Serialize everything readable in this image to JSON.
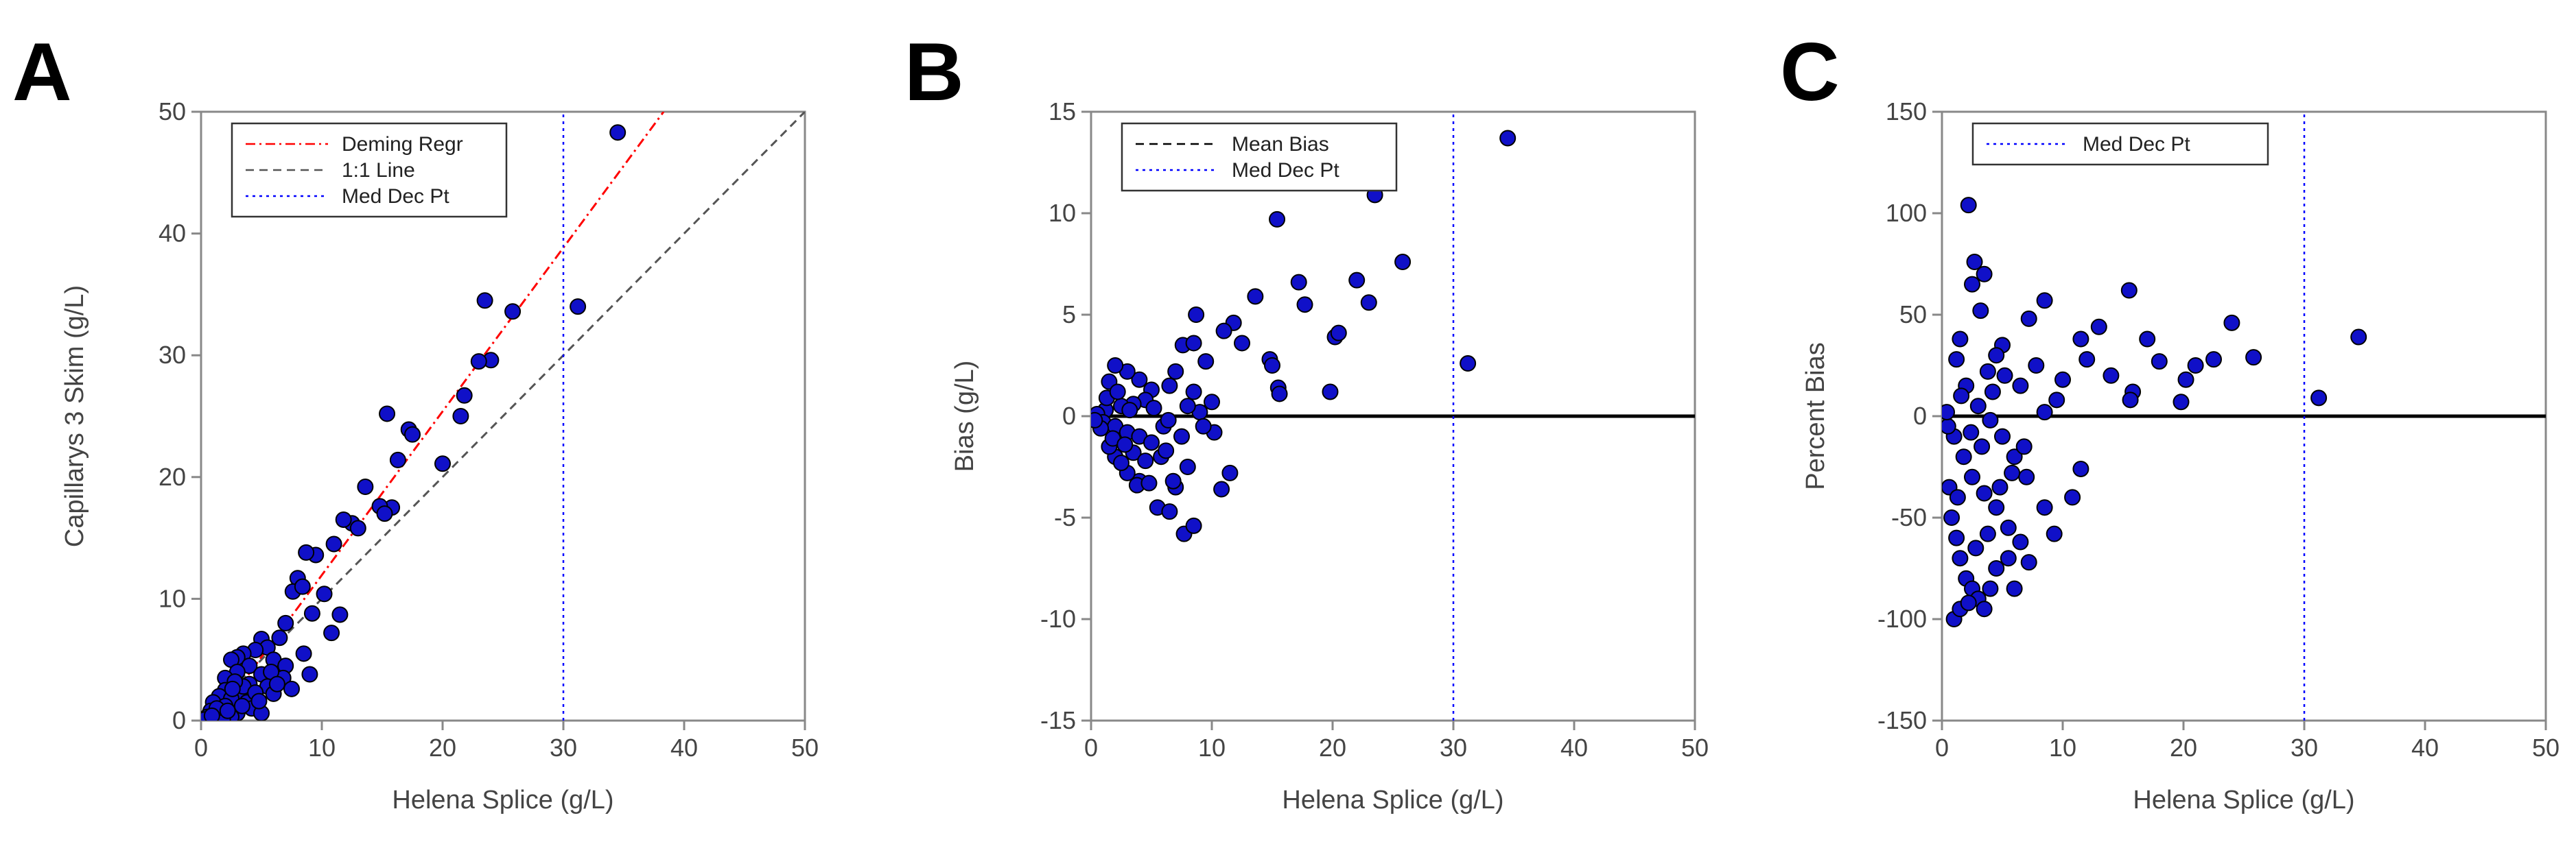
{
  "chart_data": [
    {
      "panel": "A",
      "type": "scatter",
      "xlabel": "Helena Splice (g/L)",
      "ylabel": "Capillarys 3 Skim (g/L)",
      "xlim": [
        0,
        50
      ],
      "ylim": [
        0,
        50
      ],
      "xticks": [
        0,
        10,
        20,
        30,
        40,
        50
      ],
      "yticks": [
        0,
        10,
        20,
        30,
        40,
        50
      ],
      "legend": {
        "position": "top-left",
        "entries": [
          {
            "label": "Deming Regr",
            "color": "#ff0000",
            "dash": "dashdot"
          },
          {
            "label": "1:1 Line",
            "color": "#555555",
            "dash": "dash"
          },
          {
            "label": "Med Dec Pt",
            "color": "#0000ff",
            "dash": "dot"
          }
        ]
      },
      "lines": [
        {
          "name": "Deming Regr",
          "color": "#ff0000",
          "x": [
            0,
            38.3
          ],
          "y": [
            -1.5,
            50
          ]
        },
        {
          "name": "1:1 Line",
          "color": "#555555",
          "x": [
            0,
            50
          ],
          "y": [
            0,
            50
          ]
        },
        {
          "name": "Med Dec Pt",
          "color": "#0000ff",
          "x": [
            30,
            30
          ],
          "y": [
            0,
            50
          ]
        }
      ],
      "marker_color": "#1010c8",
      "points": [
        [
          34.5,
          48.3
        ],
        [
          31.2,
          34
        ],
        [
          23.5,
          34.5
        ],
        [
          25.8,
          33.6
        ],
        [
          24,
          29.6
        ],
        [
          23,
          29.5
        ],
        [
          21.8,
          26.7
        ],
        [
          21.5,
          25
        ],
        [
          17.2,
          23.9
        ],
        [
          17.5,
          23.5
        ],
        [
          15.4,
          25.2
        ],
        [
          16.3,
          21.4
        ],
        [
          20,
          21.1
        ],
        [
          15.8,
          17.5
        ],
        [
          14.8,
          17.6
        ],
        [
          15.2,
          17
        ],
        [
          13.6,
          19.2
        ],
        [
          12.5,
          16.2
        ],
        [
          11.8,
          16.5
        ],
        [
          13,
          15.8
        ],
        [
          11,
          14.5
        ],
        [
          9.5,
          13.6
        ],
        [
          8.7,
          13.8
        ],
        [
          8,
          11.7
        ],
        [
          7.6,
          10.6
        ],
        [
          8.4,
          11
        ],
        [
          10.2,
          10.4
        ],
        [
          9.2,
          8.8
        ],
        [
          11.5,
          8.7
        ],
        [
          10.8,
          7.2
        ],
        [
          7,
          8
        ],
        [
          8.5,
          5.5
        ],
        [
          9,
          3.8
        ],
        [
          6.5,
          6.8
        ],
        [
          5,
          6.7
        ],
        [
          5.5,
          6
        ],
        [
          4.5,
          5.8
        ],
        [
          3.5,
          5.5
        ],
        [
          3,
          5.2
        ],
        [
          2.5,
          5
        ],
        [
          6,
          5
        ],
        [
          4,
          4.5
        ],
        [
          7,
          4.5
        ],
        [
          6.8,
          3.5
        ],
        [
          5,
          3.8
        ],
        [
          3,
          4
        ],
        [
          2,
          3.5
        ],
        [
          4,
          3
        ],
        [
          5.5,
          2.8
        ],
        [
          7.5,
          2.6
        ],
        [
          6,
          2.2
        ],
        [
          3.2,
          2.3
        ],
        [
          2,
          2.5
        ],
        [
          1.5,
          2
        ],
        [
          2.5,
          1.8
        ],
        [
          3.8,
          1.5
        ],
        [
          1,
          1.5
        ],
        [
          2,
          1.2
        ],
        [
          4.2,
          1
        ],
        [
          5,
          0.6
        ],
        [
          3,
          0.6
        ],
        [
          1.5,
          0.5
        ],
        [
          2.5,
          0.3
        ],
        [
          0.8,
          0.8
        ],
        [
          1.2,
          0.2
        ],
        [
          0.5,
          0.3
        ],
        [
          1.8,
          0.1
        ],
        [
          0.6,
          0
        ],
        [
          0.3,
          0.1
        ],
        [
          3.5,
          2.8
        ],
        [
          4.5,
          2.3
        ],
        [
          5.8,
          4
        ],
        [
          6.3,
          3
        ],
        [
          2.8,
          3.2
        ],
        [
          1.3,
          1
        ],
        [
          0.9,
          0.4
        ],
        [
          2.2,
          0.8
        ],
        [
          3.4,
          1.2
        ],
        [
          4.8,
          1.6
        ],
        [
          2.6,
          2.6
        ]
      ]
    },
    {
      "panel": "B",
      "type": "scatter",
      "xlabel": "Helena Splice (g/L)",
      "ylabel": "Bias (g/L)",
      "xlim": [
        0,
        50
      ],
      "ylim": [
        -15,
        15
      ],
      "xticks": [
        0,
        10,
        20,
        30,
        40,
        50
      ],
      "yticks": [
        -15,
        -10,
        -5,
        0,
        5,
        10,
        15
      ],
      "legend": {
        "position": "top-left",
        "entries": [
          {
            "label": "Mean Bias",
            "color": "#000000",
            "dash": "dash"
          },
          {
            "label": "Med Dec Pt",
            "color": "#0000ff",
            "dash": "dot"
          }
        ]
      },
      "lines": [
        {
          "name": "Mean Bias",
          "color": "#000000",
          "x": [
            0,
            50
          ],
          "y": [
            0,
            0
          ]
        },
        {
          "name": "Med Dec Pt",
          "color": "#0000ff",
          "x": [
            30,
            30
          ],
          "y": [
            -15,
            15
          ]
        }
      ],
      "marker_color": "#1010c8",
      "points": [
        [
          34.5,
          13.7
        ],
        [
          23.5,
          10.9
        ],
        [
          15.4,
          9.7
        ],
        [
          25.8,
          7.6
        ],
        [
          22,
          6.7
        ],
        [
          17.2,
          6.6
        ],
        [
          23,
          5.6
        ],
        [
          17.7,
          5.5
        ],
        [
          13.6,
          5.9
        ],
        [
          11.8,
          4.6
        ],
        [
          11,
          4.2
        ],
        [
          8.7,
          5
        ],
        [
          14.8,
          2.8
        ],
        [
          12.5,
          3.6
        ],
        [
          15,
          2.5
        ],
        [
          15.5,
          1.4
        ],
        [
          15.6,
          1.1
        ],
        [
          20.2,
          3.9
        ],
        [
          20.5,
          4.1
        ],
        [
          19.8,
          1.2
        ],
        [
          31.2,
          2.6
        ],
        [
          7.6,
          3.5
        ],
        [
          8.5,
          3.6
        ],
        [
          9.5,
          2.7
        ],
        [
          7,
          2.2
        ],
        [
          8.5,
          1.2
        ],
        [
          10,
          0.7
        ],
        [
          9,
          0.2
        ],
        [
          6.5,
          1.5
        ],
        [
          5,
          1.3
        ],
        [
          4,
          1.8
        ],
        [
          3,
          2.2
        ],
        [
          2,
          2.5
        ],
        [
          1.5,
          1.7
        ],
        [
          4.5,
          0.8
        ],
        [
          3.5,
          0.6
        ],
        [
          2.5,
          0.5
        ],
        [
          1.2,
          0.3
        ],
        [
          0.5,
          0.1
        ],
        [
          1,
          -0.3
        ],
        [
          2,
          -0.5
        ],
        [
          3,
          -0.8
        ],
        [
          4,
          -1
        ],
        [
          5,
          -1.3
        ],
        [
          6,
          -0.5
        ],
        [
          7.5,
          -1
        ],
        [
          10.2,
          -0.8
        ],
        [
          9.3,
          -0.5
        ],
        [
          11.5,
          -2.8
        ],
        [
          10.8,
          -3.6
        ],
        [
          8,
          -2.5
        ],
        [
          7,
          -3.5
        ],
        [
          6.8,
          -3.2
        ],
        [
          5.5,
          -4.5
        ],
        [
          6.5,
          -4.7
        ],
        [
          7.7,
          -5.8
        ],
        [
          8.5,
          -5.4
        ],
        [
          4,
          -3.2
        ],
        [
          3,
          -2.8
        ],
        [
          2,
          -2
        ],
        [
          1.5,
          -1.5
        ],
        [
          2.5,
          -2.3
        ],
        [
          3.5,
          -1.8
        ],
        [
          4.5,
          -2.2
        ],
        [
          5.8,
          -2
        ],
        [
          0.8,
          -0.6
        ],
        [
          1.8,
          -1.1
        ],
        [
          2.8,
          -1.4
        ],
        [
          3.8,
          -3.4
        ],
        [
          4.8,
          -3.3
        ],
        [
          6.2,
          -1.7
        ],
        [
          0.3,
          -0.2
        ],
        [
          1.3,
          0.9
        ],
        [
          2.2,
          1.2
        ],
        [
          3.2,
          0.3
        ],
        [
          5.2,
          0.4
        ],
        [
          6.4,
          -0.2
        ],
        [
          8,
          0.5
        ]
      ]
    },
    {
      "panel": "C",
      "type": "scatter",
      "xlabel": "Helena Splice (g/L)",
      "ylabel": "Percent Bias",
      "xlim": [
        0,
        50
      ],
      "ylim": [
        -150,
        150
      ],
      "xticks": [
        0,
        10,
        20,
        30,
        40,
        50
      ],
      "yticks": [
        -150,
        -100,
        -50,
        0,
        50,
        100,
        150
      ],
      "legend": {
        "position": "top-left",
        "entries": [
          {
            "label": "Med Dec Pt",
            "color": "#0000ff",
            "dash": "dot"
          }
        ]
      },
      "lines": [
        {
          "name": "zero",
          "color": "#000000",
          "x": [
            0,
            50
          ],
          "y": [
            0,
            0
          ]
        },
        {
          "name": "Med Dec Pt",
          "color": "#0000ff",
          "x": [
            30,
            30
          ],
          "y": [
            -150,
            150
          ]
        }
      ],
      "marker_color": "#1010c8",
      "points": [
        [
          2.2,
          104
        ],
        [
          2.7,
          76
        ],
        [
          3.5,
          70
        ],
        [
          2.5,
          65
        ],
        [
          15.5,
          62
        ],
        [
          3.2,
          52
        ],
        [
          8.5,
          57
        ],
        [
          7.2,
          48
        ],
        [
          13,
          44
        ],
        [
          11.5,
          38
        ],
        [
          24,
          46
        ],
        [
          34.5,
          39
        ],
        [
          17,
          38
        ],
        [
          22.5,
          28
        ],
        [
          21,
          25
        ],
        [
          25.8,
          29
        ],
        [
          20.2,
          18
        ],
        [
          18,
          27
        ],
        [
          15.8,
          12
        ],
        [
          15.6,
          8
        ],
        [
          19.8,
          7
        ],
        [
          31.2,
          9
        ],
        [
          12,
          28
        ],
        [
          14,
          20
        ],
        [
          10,
          18
        ],
        [
          9.5,
          8
        ],
        [
          8.5,
          2
        ],
        [
          7.8,
          25
        ],
        [
          6.5,
          15
        ],
        [
          5,
          35
        ],
        [
          4.5,
          30
        ],
        [
          3.8,
          22
        ],
        [
          1.5,
          38
        ],
        [
          1.2,
          28
        ],
        [
          2,
          15
        ],
        [
          3,
          5
        ],
        [
          4,
          -2
        ],
        [
          5,
          -10
        ],
        [
          6,
          -20
        ],
        [
          7,
          -30
        ],
        [
          8.5,
          -45
        ],
        [
          9.3,
          -58
        ],
        [
          10.8,
          -40
        ],
        [
          11.5,
          -26
        ],
        [
          7.2,
          -72
        ],
        [
          6.5,
          -62
        ],
        [
          5.5,
          -55
        ],
        [
          4.5,
          -45
        ],
        [
          3.5,
          -38
        ],
        [
          2.5,
          -30
        ],
        [
          1.8,
          -20
        ],
        [
          1,
          -10
        ],
        [
          0.5,
          -5
        ],
        [
          0.8,
          -50
        ],
        [
          1.2,
          -60
        ],
        [
          1.5,
          -70
        ],
        [
          2,
          -80
        ],
        [
          2.5,
          -85
        ],
        [
          3,
          -90
        ],
        [
          3.5,
          -95
        ],
        [
          4,
          -85
        ],
        [
          4.5,
          -75
        ],
        [
          5.5,
          -70
        ],
        [
          6,
          -85
        ],
        [
          1,
          -100
        ],
        [
          1.5,
          -95
        ],
        [
          2.2,
          -92
        ],
        [
          0.6,
          -35
        ],
        [
          1.3,
          -40
        ],
        [
          2.8,
          -65
        ],
        [
          3.8,
          -58
        ],
        [
          4.8,
          -35
        ],
        [
          5.8,
          -28
        ],
        [
          6.8,
          -15
        ],
        [
          0.4,
          2
        ],
        [
          1.6,
          10
        ],
        [
          2.4,
          -8
        ],
        [
          3.3,
          -15
        ],
        [
          4.2,
          12
        ],
        [
          5.2,
          20
        ]
      ]
    }
  ]
}
